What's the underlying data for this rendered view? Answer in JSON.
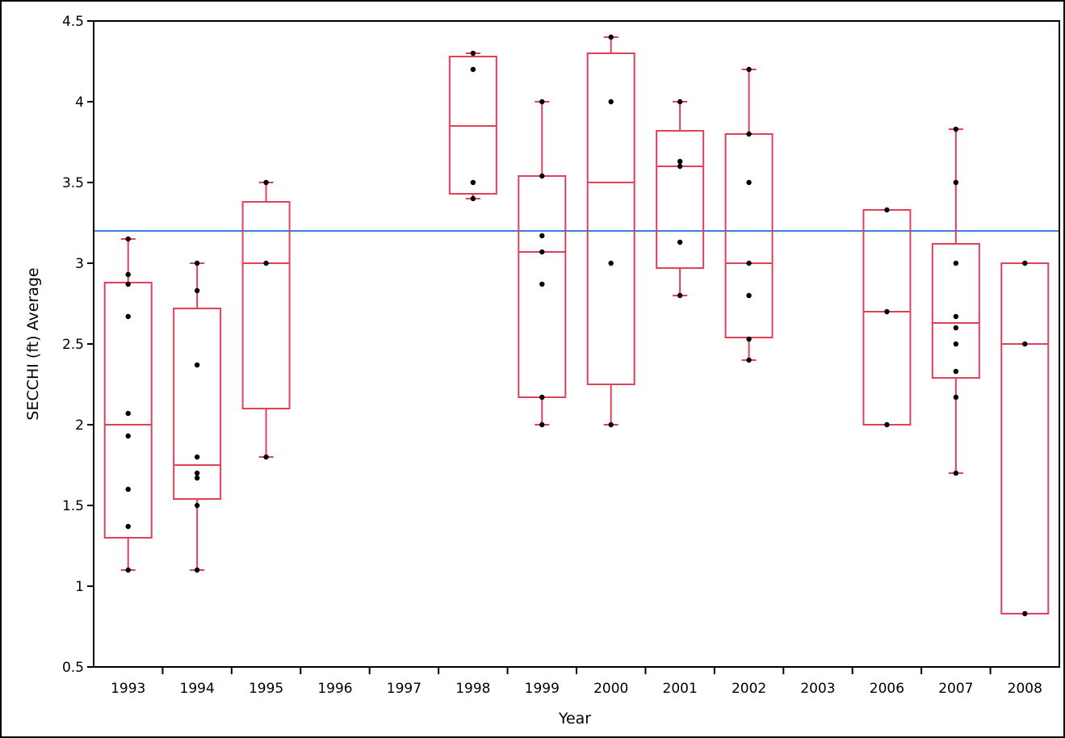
{
  "chart_data": {
    "type": "box",
    "title": "",
    "xlabel": "Year",
    "ylabel": "SECCHI (ft) Average",
    "ylim": [
      0.5,
      4.5
    ],
    "yticks": [
      "0.5",
      "1",
      "1.5",
      "2",
      "2.5",
      "3",
      "3.5",
      "4",
      "4.5"
    ],
    "categories": [
      "1993",
      "1994",
      "1995",
      "1996",
      "1997",
      "1998",
      "1999",
      "2000",
      "2001",
      "2002",
      "2003",
      "2006",
      "2007",
      "2008"
    ],
    "reference_line": 3.2,
    "colors": {
      "box": "#e0405a",
      "points": "#000000",
      "reference": "#3d7fe0"
    },
    "boxes": [
      {
        "year": "1993",
        "min": 1.1,
        "q1": 1.3,
        "median": 2.0,
        "q3": 2.88,
        "max": 3.15,
        "points": [
          1.1,
          1.37,
          1.6,
          1.93,
          2.07,
          2.67,
          2.87,
          2.93,
          3.15
        ]
      },
      {
        "year": "1994",
        "min": 1.1,
        "q1": 1.54,
        "median": 1.75,
        "q3": 2.72,
        "max": 3.0,
        "points": [
          1.1,
          1.5,
          1.67,
          1.7,
          1.8,
          2.37,
          2.83,
          3.0
        ]
      },
      {
        "year": "1995",
        "min": 1.8,
        "q1": 2.1,
        "median": 3.0,
        "q3": 3.38,
        "max": 3.5,
        "points": [
          1.8,
          3.0,
          3.5
        ]
      },
      {
        "year": "1996"
      },
      {
        "year": "1997"
      },
      {
        "year": "1998",
        "min": 3.4,
        "q1": 3.43,
        "median": 3.85,
        "q3": 4.28,
        "max": 4.3,
        "points": [
          3.4,
          3.5,
          4.2,
          4.3
        ]
      },
      {
        "year": "1999",
        "min": 2.0,
        "q1": 2.17,
        "median": 3.07,
        "q3": 3.54,
        "max": 4.0,
        "points": [
          2.0,
          2.17,
          2.87,
          3.07,
          3.17,
          3.54,
          4.0
        ]
      },
      {
        "year": "2000",
        "min": 2.0,
        "q1": 2.25,
        "median": 3.5,
        "q3": 4.3,
        "max": 4.4,
        "points": [
          2.0,
          3.0,
          4.0,
          4.4
        ]
      },
      {
        "year": "2001",
        "min": 2.8,
        "q1": 2.97,
        "median": 3.6,
        "q3": 3.82,
        "max": 4.0,
        "points": [
          2.8,
          3.13,
          3.6,
          3.63,
          4.0
        ]
      },
      {
        "year": "2002",
        "min": 2.4,
        "q1": 2.54,
        "median": 3.0,
        "q3": 3.8,
        "max": 4.2,
        "points": [
          2.4,
          2.53,
          2.8,
          3.0,
          3.5,
          3.8,
          4.2
        ]
      },
      {
        "year": "2003"
      },
      {
        "year": "2006",
        "min": 2.0,
        "q1": 2.0,
        "median": 2.7,
        "q3": 3.33,
        "max": 3.33,
        "points": [
          2.0,
          2.7,
          3.33
        ]
      },
      {
        "year": "2007",
        "min": 1.7,
        "q1": 2.29,
        "median": 2.63,
        "q3": 3.12,
        "max": 3.83,
        "points": [
          1.7,
          2.17,
          2.33,
          2.5,
          2.6,
          2.67,
          3.0,
          3.5,
          3.83
        ]
      },
      {
        "year": "2008",
        "min": 0.83,
        "q1": 0.83,
        "median": 2.5,
        "q3": 3.0,
        "max": 3.0,
        "points": [
          0.83,
          2.5,
          3.0
        ]
      }
    ]
  }
}
